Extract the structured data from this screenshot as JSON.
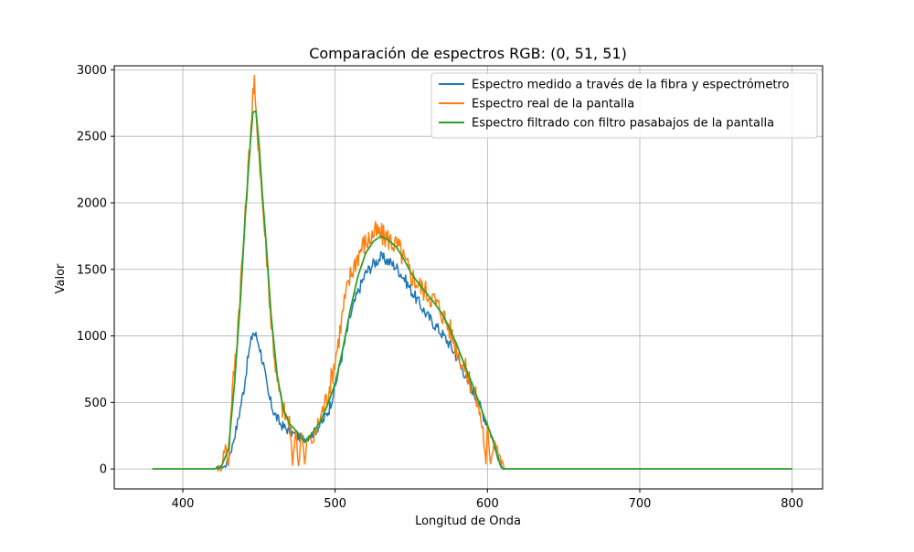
{
  "chart_data": {
    "type": "line",
    "title": "Comparación de espectros RGB: (0, 51, 51)",
    "xlabel": "Longitud de Onda",
    "ylabel": "Valor",
    "xlim": [
      355,
      820
    ],
    "ylim": [
      -150,
      3030
    ],
    "xticks": [
      400,
      500,
      600,
      700,
      800
    ],
    "yticks": [
      0,
      500,
      1000,
      1500,
      2000,
      2500,
      3000
    ],
    "grid": true,
    "legend_position": "top-right",
    "series": [
      {
        "name": "Espectro medido a través de la fibra y espectrómetro",
        "color": "#1f77b4",
        "x": [
          380,
          420,
          428,
          432,
          436,
          440,
          443,
          446,
          448,
          450,
          453,
          456,
          460,
          464,
          468,
          472,
          476,
          480,
          484,
          488,
          492,
          496,
          500,
          505,
          510,
          515,
          520,
          525,
          530,
          535,
          540,
          545,
          550,
          555,
          560,
          565,
          570,
          575,
          580,
          585,
          590,
          595,
          600,
          604,
          607,
          610,
          615,
          630,
          700,
          800
        ],
        "y": [
          0,
          0,
          20,
          150,
          350,
          600,
          850,
          1030,
          1000,
          940,
          780,
          560,
          420,
          340,
          300,
          270,
          240,
          230,
          250,
          300,
          360,
          450,
          620,
          880,
          1150,
          1330,
          1470,
          1540,
          1590,
          1560,
          1520,
          1440,
          1340,
          1250,
          1160,
          1090,
          1020,
          940,
          840,
          720,
          600,
          470,
          330,
          210,
          80,
          0,
          0,
          0,
          0,
          0
        ]
      },
      {
        "name": "Espectro real de la pantalla",
        "color": "#ff7f0e",
        "x": [
          380,
          420,
          425,
          428,
          430,
          432,
          435,
          438,
          441,
          444,
          446,
          447,
          448,
          450,
          452,
          455,
          458,
          462,
          466,
          470,
          472,
          474,
          476,
          478,
          480,
          482,
          484,
          486,
          488,
          490,
          494,
          498,
          502,
          506,
          510,
          514,
          518,
          522,
          526,
          530,
          534,
          538,
          542,
          546,
          550,
          555,
          560,
          565,
          570,
          575,
          580,
          585,
          590,
          594,
          597,
          599,
          600,
          602,
          605,
          607,
          609,
          612,
          620,
          700,
          800
        ],
        "y": [
          0,
          0,
          10,
          180,
          30,
          520,
          900,
          1400,
          1900,
          2450,
          2820,
          2880,
          2650,
          2400,
          2050,
          1600,
          1100,
          650,
          430,
          350,
          40,
          300,
          20,
          320,
          30,
          240,
          200,
          230,
          300,
          380,
          520,
          700,
          950,
          1250,
          1450,
          1580,
          1680,
          1720,
          1780,
          1760,
          1740,
          1700,
          1660,
          1550,
          1460,
          1380,
          1330,
          1270,
          1180,
          1060,
          900,
          760,
          620,
          480,
          300,
          20,
          300,
          60,
          250,
          130,
          50,
          0,
          0,
          0,
          0
        ]
      },
      {
        "name": "Espectro filtrado con filtro pasabajos de la pantalla",
        "color": "#2ca02c",
        "x": [
          380,
          420,
          425,
          430,
          434,
          438,
          441,
          444,
          446,
          448,
          450,
          452,
          455,
          458,
          462,
          466,
          470,
          475,
          480,
          485,
          490,
          495,
          500,
          505,
          510,
          515,
          520,
          525,
          530,
          535,
          540,
          545,
          550,
          555,
          560,
          565,
          570,
          575,
          580,
          585,
          590,
          595,
          600,
          604,
          607,
          610,
          615,
          630,
          700,
          800
        ],
        "y": [
          0,
          0,
          10,
          150,
          650,
          1300,
          1900,
          2400,
          2680,
          2690,
          2450,
          2100,
          1650,
          1150,
          700,
          450,
          340,
          280,
          200,
          270,
          350,
          480,
          640,
          900,
          1200,
          1450,
          1620,
          1710,
          1750,
          1720,
          1670,
          1580,
          1470,
          1390,
          1320,
          1250,
          1170,
          1060,
          930,
          780,
          640,
          480,
          330,
          200,
          70,
          0,
          0,
          0,
          0,
          0
        ]
      }
    ]
  }
}
